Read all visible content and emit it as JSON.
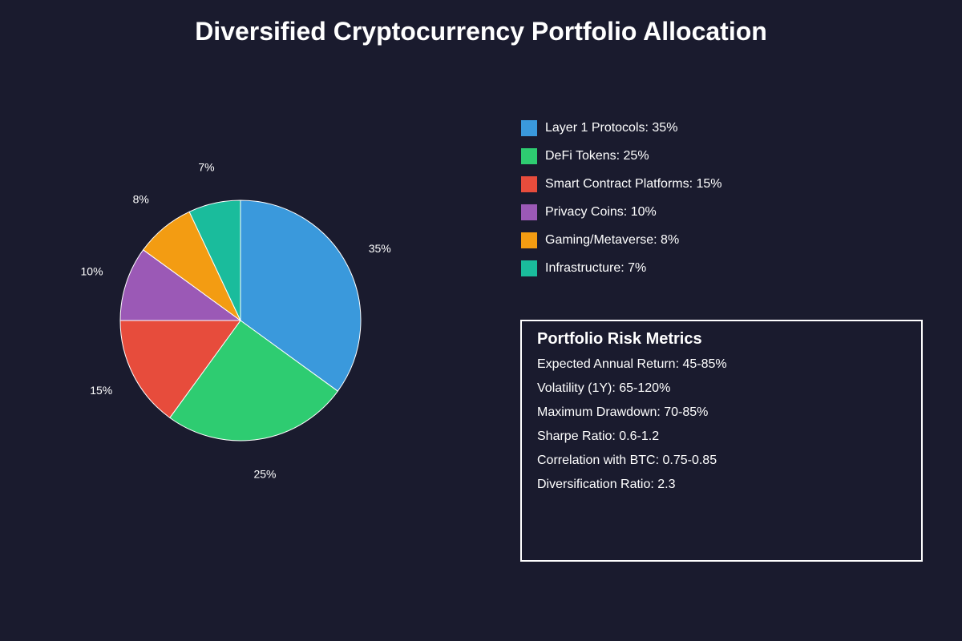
{
  "chart_data": {
    "type": "pie",
    "title": "Diversified Cryptocurrency Portfolio Allocation",
    "categories": [
      "Layer 1 Protocols",
      "DeFi Tokens",
      "Smart Contract Platforms",
      "Privacy Coins",
      "Gaming/Metaverse",
      "Infrastructure"
    ],
    "values": [
      35,
      25,
      15,
      10,
      8,
      7
    ],
    "labels": [
      "35%",
      "25%",
      "15%",
      "10%",
      "8%",
      "7%"
    ],
    "colors": [
      "#3a99dc",
      "#2ecc71",
      "#e74c3c",
      "#9b59b6",
      "#f39c12",
      "#1abc9c"
    ],
    "legend": [
      "Layer 1 Protocols: 35%",
      "DeFi Tokens: 25%",
      "Smart Contract Platforms: 15%",
      "Privacy Coins: 10%",
      "Gaming/Metaverse: 8%",
      "Infrastructure: 7%"
    ],
    "start_angle": "12 o'clock",
    "direction": "clockwise",
    "legend_position": "right"
  },
  "metrics": {
    "title": "Portfolio Risk Metrics",
    "items": [
      "Expected Annual Return: 45-85%",
      "Volatility (1Y): 65-120%",
      "Maximum Drawdown: 70-85%",
      "Sharpe Ratio: 0.6-1.2",
      "Correlation with BTC: 0.75-0.85",
      "Diversification Ratio: 2.3"
    ]
  },
  "theme": {
    "background": "#1a1b2e",
    "text": "#ffffff",
    "slice_border": "#ffffff"
  }
}
